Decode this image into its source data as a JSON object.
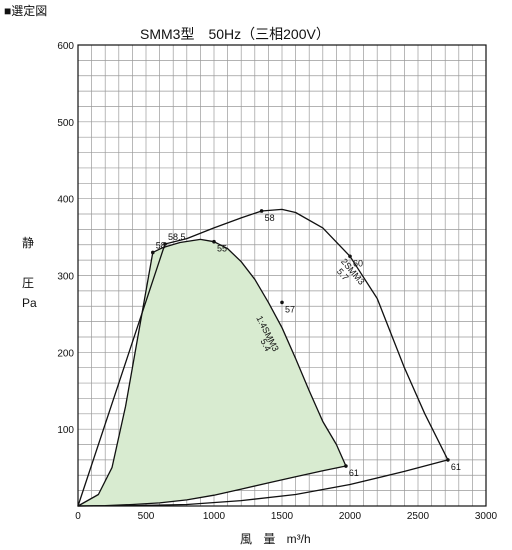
{
  "header": "■選定図",
  "chart_data": {
    "type": "line",
    "title": "SMM3型　50Hz（三相200V）",
    "ylabel_chars": [
      "静",
      "圧",
      "Pa"
    ],
    "xlabel": "風 量 m³/h",
    "xlim": [
      0,
      3000
    ],
    "ylim": [
      0,
      600
    ],
    "x_ticks": [
      0,
      500,
      1000,
      1500,
      2000,
      2500,
      3000
    ],
    "y_ticks": [
      100,
      200,
      300,
      400,
      500,
      600
    ],
    "grid": true,
    "fill_color": "#d8ebd0",
    "series": [
      {
        "name": "1:4SMM3",
        "sub_label": "5.4",
        "filled": true,
        "points": [
          [
            0,
            0
          ],
          [
            150,
            15
          ],
          [
            250,
            50
          ],
          [
            350,
            130
          ],
          [
            450,
            230
          ],
          [
            550,
            330
          ],
          [
            620,
            336
          ],
          [
            750,
            343
          ],
          [
            900,
            347
          ],
          [
            1000,
            344
          ],
          [
            1100,
            335
          ],
          [
            1200,
            318
          ],
          [
            1300,
            295
          ],
          [
            1400,
            265
          ],
          [
            1500,
            232
          ],
          [
            1600,
            192
          ],
          [
            1700,
            150
          ],
          [
            1800,
            110
          ],
          [
            1900,
            80
          ],
          [
            1970,
            52
          ],
          [
            1800,
            46
          ],
          [
            1600,
            38
          ],
          [
            1400,
            30
          ],
          [
            1200,
            22
          ],
          [
            1000,
            14
          ],
          [
            800,
            8
          ],
          [
            600,
            4
          ],
          [
            400,
            2
          ],
          [
            200,
            0.5
          ],
          [
            0,
            0
          ]
        ],
        "annotations": [
          {
            "x": 550,
            "y": 330,
            "label": "58"
          },
          {
            "x": 1000,
            "y": 344,
            "label": "55"
          },
          {
            "x": 1500,
            "y": 265,
            "label": "57"
          },
          {
            "x": 1970,
            "y": 52,
            "label": "61"
          }
        ]
      },
      {
        "name": "2SMM3",
        "sub_label": "5.7",
        "filled": false,
        "points": [
          [
            640,
            341
          ],
          [
            800,
            348
          ],
          [
            1000,
            362
          ],
          [
            1200,
            375
          ],
          [
            1350,
            384
          ],
          [
            1500,
            386
          ],
          [
            1600,
            382
          ],
          [
            1800,
            362
          ],
          [
            2000,
            325
          ],
          [
            2200,
            270
          ],
          [
            2400,
            180
          ],
          [
            2550,
            120
          ],
          [
            2720,
            60
          ],
          [
            2400,
            45
          ],
          [
            2000,
            28
          ],
          [
            1600,
            15
          ],
          [
            1200,
            7
          ],
          [
            800,
            2
          ],
          [
            400,
            0.5
          ],
          [
            0,
            0
          ]
        ],
        "annotations": [
          {
            "x": 640,
            "y": 341,
            "label": "58.5"
          },
          {
            "x": 1350,
            "y": 384,
            "label": "58"
          },
          {
            "x": 2000,
            "y": 325,
            "label": "60"
          },
          {
            "x": 2720,
            "y": 60,
            "label": "61"
          }
        ]
      }
    ]
  }
}
